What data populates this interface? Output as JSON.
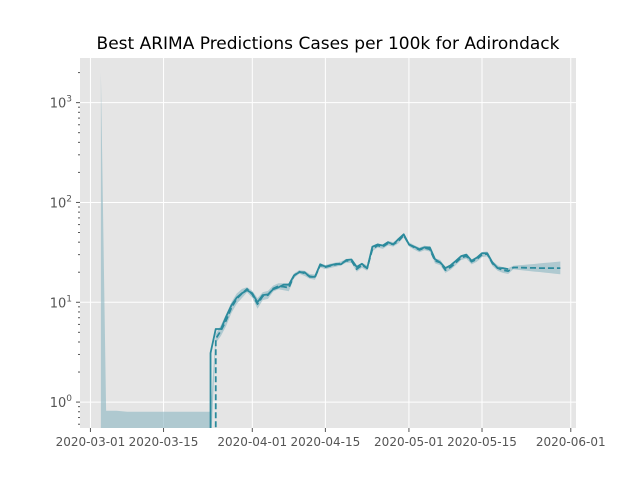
{
  "chart_data": {
    "type": "line",
    "title": "Best ARIMA Predictions Cases per 100k for Adirondack",
    "xlabel": "",
    "ylabel": "",
    "x_range": [
      "2020-02-28",
      "2020-06-02"
    ],
    "ylim": [
      0.55,
      2800
    ],
    "y_scale": "log",
    "grid": true,
    "legend": "none",
    "x_ticks": [
      {
        "date": "2020-03-01",
        "label": "2020-03-01"
      },
      {
        "date": "2020-03-15",
        "label": "2020-03-15"
      },
      {
        "date": "2020-04-01",
        "label": "2020-04-01"
      },
      {
        "date": "2020-04-15",
        "label": "2020-04-15"
      },
      {
        "date": "2020-05-01",
        "label": "2020-05-01"
      },
      {
        "date": "2020-05-15",
        "label": "2020-05-15"
      },
      {
        "date": "2020-06-01",
        "label": "2020-06-01"
      }
    ],
    "y_ticks": [
      {
        "value": 1,
        "base": "10",
        "exp": "0"
      },
      {
        "value": 10,
        "base": "10",
        "exp": "1"
      },
      {
        "value": 100,
        "base": "10",
        "exp": "2"
      },
      {
        "value": 1000,
        "base": "10",
        "exp": "3"
      }
    ],
    "actual": {
      "style": "solid",
      "color": "#2b8a9c",
      "points": [
        [
          "2020-03-24",
          0.3
        ],
        [
          "2020-03-24",
          3.1
        ],
        [
          "2020-03-25",
          5.4
        ],
        [
          "2020-03-26",
          5.4
        ],
        [
          "2020-03-27",
          7.2
        ],
        [
          "2020-03-28",
          9.3
        ],
        [
          "2020-03-29",
          11.1
        ],
        [
          "2020-03-30",
          12.3
        ],
        [
          "2020-03-31",
          13.2
        ],
        [
          "2020-04-01",
          12.3
        ],
        [
          "2020-04-02",
          10.0
        ],
        [
          "2020-04-03",
          11.8
        ],
        [
          "2020-04-04",
          12.0
        ],
        [
          "2020-04-05",
          13.5
        ],
        [
          "2020-04-06",
          14.1
        ],
        [
          "2020-04-07",
          15.0
        ],
        [
          "2020-04-08",
          15.0
        ],
        [
          "2020-04-09",
          18.6
        ],
        [
          "2020-04-10",
          20.0
        ],
        [
          "2020-04-11",
          20.0
        ],
        [
          "2020-04-12",
          18.0
        ],
        [
          "2020-04-13",
          18.0
        ],
        [
          "2020-04-14",
          24.0
        ],
        [
          "2020-04-15",
          22.7
        ],
        [
          "2020-04-16",
          23.5
        ],
        [
          "2020-04-17",
          24.2
        ],
        [
          "2020-04-18",
          24.0
        ],
        [
          "2020-04-19",
          26.5
        ],
        [
          "2020-04-20",
          26.8
        ],
        [
          "2020-04-21",
          22.6
        ],
        [
          "2020-04-22",
          24.3
        ],
        [
          "2020-04-23",
          21.8
        ],
        [
          "2020-04-24",
          36.0
        ],
        [
          "2020-04-25",
          38.0
        ],
        [
          "2020-04-26",
          37.0
        ],
        [
          "2020-04-27",
          40.0
        ],
        [
          "2020-04-28",
          38.0
        ],
        [
          "2020-04-29",
          43.0
        ],
        [
          "2020-04-30",
          48.0
        ],
        [
          "2020-05-01",
          38.0
        ],
        [
          "2020-05-02",
          36.0
        ],
        [
          "2020-05-03",
          34.0
        ],
        [
          "2020-05-04",
          35.5
        ],
        [
          "2020-05-05",
          35.5
        ],
        [
          "2020-05-06",
          27.0
        ],
        [
          "2020-05-07",
          25.0
        ],
        [
          "2020-05-08",
          22.0
        ],
        [
          "2020-05-09",
          23.5
        ],
        [
          "2020-05-10",
          26.0
        ],
        [
          "2020-05-11",
          29.0
        ],
        [
          "2020-05-12",
          30.0
        ],
        [
          "2020-05-13",
          26.0
        ],
        [
          "2020-05-14",
          28.0
        ],
        [
          "2020-05-15",
          31.0
        ],
        [
          "2020-05-16",
          31.0
        ],
        [
          "2020-05-17",
          25.0
        ],
        [
          "2020-05-18",
          22.0
        ],
        [
          "2020-05-19",
          22.0
        ],
        [
          "2020-05-20",
          21.5
        ]
      ]
    },
    "predicted": {
      "style": "dashed",
      "color": "#2b8a9c",
      "points": [
        [
          "2020-03-25",
          0.3
        ],
        [
          "2020-03-25",
          4.3
        ],
        [
          "2020-03-26",
          5.2
        ],
        [
          "2020-03-27",
          6.6
        ],
        [
          "2020-03-28",
          8.8
        ],
        [
          "2020-03-29",
          10.8
        ],
        [
          "2020-03-30",
          12.2
        ],
        [
          "2020-03-31",
          13.6
        ],
        [
          "2020-04-01",
          12.0
        ],
        [
          "2020-04-02",
          9.6
        ],
        [
          "2020-04-03",
          11.5
        ],
        [
          "2020-04-04",
          11.8
        ],
        [
          "2020-04-05",
          13.7
        ],
        [
          "2020-04-06",
          14.5
        ],
        [
          "2020-04-07",
          14.3
        ],
        [
          "2020-04-08",
          14.0
        ],
        [
          "2020-04-09",
          18.5
        ],
        [
          "2020-04-10",
          20.2
        ],
        [
          "2020-04-11",
          19.5
        ],
        [
          "2020-04-12",
          18.2
        ],
        [
          "2020-04-13",
          17.8
        ],
        [
          "2020-04-14",
          23.5
        ],
        [
          "2020-04-15",
          22.5
        ],
        [
          "2020-04-16",
          23.2
        ],
        [
          "2020-04-17",
          23.8
        ],
        [
          "2020-04-18",
          24.5
        ],
        [
          "2020-04-19",
          26.0
        ],
        [
          "2020-04-20",
          26.0
        ],
        [
          "2020-04-21",
          21.5
        ],
        [
          "2020-04-22",
          23.5
        ],
        [
          "2020-04-23",
          22.0
        ],
        [
          "2020-04-24",
          34.0
        ],
        [
          "2020-04-25",
          37.0
        ],
        [
          "2020-04-26",
          36.0
        ],
        [
          "2020-04-27",
          39.0
        ],
        [
          "2020-04-28",
          38.0
        ],
        [
          "2020-04-29",
          41.0
        ],
        [
          "2020-04-30",
          47.0
        ],
        [
          "2020-05-01",
          38.0
        ],
        [
          "2020-05-02",
          35.5
        ],
        [
          "2020-05-03",
          33.5
        ],
        [
          "2020-05-04",
          35.0
        ],
        [
          "2020-05-05",
          34.0
        ],
        [
          "2020-05-06",
          26.0
        ],
        [
          "2020-05-07",
          25.0
        ],
        [
          "2020-05-08",
          21.0
        ],
        [
          "2020-05-09",
          22.5
        ],
        [
          "2020-05-10",
          25.0
        ],
        [
          "2020-05-11",
          28.0
        ],
        [
          "2020-05-12",
          29.0
        ],
        [
          "2020-05-13",
          25.5
        ],
        [
          "2020-05-14",
          27.0
        ],
        [
          "2020-05-15",
          30.0
        ],
        [
          "2020-05-16",
          30.5
        ],
        [
          "2020-05-17",
          24.5
        ],
        [
          "2020-05-18",
          22.0
        ],
        [
          "2020-05-19",
          21.0
        ],
        [
          "2020-05-20",
          20.5
        ],
        [
          "2020-05-21",
          22.3
        ],
        [
          "2020-05-22",
          22.3
        ],
        [
          "2020-05-23",
          22.2
        ],
        [
          "2020-05-24",
          22.1
        ],
        [
          "2020-05-25",
          22.1
        ],
        [
          "2020-05-26",
          22.0
        ],
        [
          "2020-05-27",
          22.0
        ],
        [
          "2020-05-28",
          22.0
        ],
        [
          "2020-05-29",
          22.0
        ],
        [
          "2020-05-30",
          22.0
        ]
      ]
    },
    "confidence_band": {
      "color": "#8ab6c2",
      "opacity": 0.6,
      "upper": [
        [
          "2020-03-03",
          2000
        ],
        [
          "2020-03-04",
          0.82
        ],
        [
          "2020-03-06",
          0.82
        ],
        [
          "2020-03-08",
          0.8
        ],
        [
          "2020-03-24",
          0.8
        ],
        [
          "2020-03-25",
          4.8
        ],
        [
          "2020-03-26",
          5.9
        ],
        [
          "2020-03-27",
          7.6
        ],
        [
          "2020-03-28",
          10.0
        ],
        [
          "2020-03-29",
          12.2
        ],
        [
          "2020-03-30",
          13.6
        ],
        [
          "2020-03-31",
          14.2
        ],
        [
          "2020-04-01",
          13.0
        ],
        [
          "2020-04-02",
          11.0
        ],
        [
          "2020-04-03",
          12.6
        ],
        [
          "2020-04-04",
          13.0
        ],
        [
          "2020-04-05",
          14.7
        ],
        [
          "2020-04-06",
          15.5
        ],
        [
          "2020-04-07",
          15.5
        ],
        [
          "2020-04-08",
          15.5
        ],
        [
          "2020-04-09",
          19.5
        ],
        [
          "2020-04-10",
          21.0
        ],
        [
          "2020-04-11",
          20.7
        ],
        [
          "2020-04-12",
          19.2
        ],
        [
          "2020-04-13",
          19.0
        ],
        [
          "2020-04-14",
          24.6
        ],
        [
          "2020-04-15",
          23.6
        ],
        [
          "2020-04-16",
          24.4
        ],
        [
          "2020-04-17",
          25.0
        ],
        [
          "2020-04-18",
          25.6
        ],
        [
          "2020-04-19",
          27.2
        ],
        [
          "2020-04-20",
          27.3
        ],
        [
          "2020-04-21",
          23.0
        ],
        [
          "2020-04-22",
          24.9
        ],
        [
          "2020-04-23",
          23.4
        ],
        [
          "2020-04-24",
          35.6
        ],
        [
          "2020-04-25",
          38.8
        ],
        [
          "2020-04-26",
          37.8
        ],
        [
          "2020-04-27",
          41.0
        ],
        [
          "2020-04-28",
          40.0
        ],
        [
          "2020-04-29",
          43.2
        ],
        [
          "2020-04-30",
          49.4
        ],
        [
          "2020-05-01",
          40.0
        ],
        [
          "2020-05-02",
          37.4
        ],
        [
          "2020-05-03",
          35.4
        ],
        [
          "2020-05-04",
          36.9
        ],
        [
          "2020-05-05",
          35.9
        ],
        [
          "2020-05-06",
          27.6
        ],
        [
          "2020-05-07",
          26.6
        ],
        [
          "2020-05-08",
          22.4
        ],
        [
          "2020-05-09",
          23.9
        ],
        [
          "2020-05-10",
          26.5
        ],
        [
          "2020-05-11",
          29.6
        ],
        [
          "2020-05-12",
          30.7
        ],
        [
          "2020-05-13",
          27.0
        ],
        [
          "2020-05-14",
          28.6
        ],
        [
          "2020-05-15",
          31.8
        ],
        [
          "2020-05-16",
          32.3
        ],
        [
          "2020-05-17",
          26.0
        ],
        [
          "2020-05-18",
          23.4
        ],
        [
          "2020-05-19",
          22.4
        ],
        [
          "2020-05-20",
          21.9
        ],
        [
          "2020-05-21",
          23.2
        ],
        [
          "2020-05-22",
          23.5
        ],
        [
          "2020-05-23",
          23.7
        ],
        [
          "2020-05-24",
          24.0
        ],
        [
          "2020-05-25",
          24.2
        ],
        [
          "2020-05-26",
          24.5
        ],
        [
          "2020-05-27",
          24.8
        ],
        [
          "2020-05-28",
          25.0
        ],
        [
          "2020-05-29",
          25.3
        ],
        [
          "2020-05-30",
          25.6
        ]
      ],
      "lower": [
        [
          "2020-03-03",
          0.3
        ],
        [
          "2020-03-24",
          0.3
        ],
        [
          "2020-03-25",
          3.9
        ],
        [
          "2020-03-26",
          4.6
        ],
        [
          "2020-03-27",
          5.8
        ],
        [
          "2020-03-28",
          7.8
        ],
        [
          "2020-03-29",
          9.6
        ],
        [
          "2020-03-30",
          11.0
        ],
        [
          "2020-03-31",
          12.6
        ],
        [
          "2020-04-01",
          11.1
        ],
        [
          "2020-04-02",
          8.6
        ],
        [
          "2020-04-03",
          10.5
        ],
        [
          "2020-04-04",
          10.8
        ],
        [
          "2020-04-05",
          12.8
        ],
        [
          "2020-04-06",
          13.5
        ],
        [
          "2020-04-07",
          13.2
        ],
        [
          "2020-04-08",
          12.9
        ],
        [
          "2020-04-09",
          17.5
        ],
        [
          "2020-04-10",
          19.3
        ],
        [
          "2020-04-11",
          18.4
        ],
        [
          "2020-04-12",
          17.2
        ],
        [
          "2020-04-13",
          16.8
        ],
        [
          "2020-04-14",
          22.4
        ],
        [
          "2020-04-15",
          21.4
        ],
        [
          "2020-04-16",
          22.1
        ],
        [
          "2020-04-17",
          22.7
        ],
        [
          "2020-04-18",
          23.4
        ],
        [
          "2020-04-19",
          24.9
        ],
        [
          "2020-04-20",
          24.8
        ],
        [
          "2020-04-21",
          20.2
        ],
        [
          "2020-04-22",
          22.2
        ],
        [
          "2020-04-23",
          20.7
        ],
        [
          "2020-04-24",
          32.5
        ],
        [
          "2020-04-25",
          35.3
        ],
        [
          "2020-04-26",
          34.3
        ],
        [
          "2020-04-27",
          37.1
        ],
        [
          "2020-04-28",
          36.1
        ],
        [
          "2020-04-29",
          39.0
        ],
        [
          "2020-04-30",
          44.7
        ],
        [
          "2020-05-01",
          36.2
        ],
        [
          "2020-05-02",
          33.7
        ],
        [
          "2020-05-03",
          31.7
        ],
        [
          "2020-05-04",
          33.2
        ],
        [
          "2020-05-05",
          32.2
        ],
        [
          "2020-05-06",
          24.5
        ],
        [
          "2020-05-07",
          23.5
        ],
        [
          "2020-05-08",
          19.7
        ],
        [
          "2020-05-09",
          21.2
        ],
        [
          "2020-05-10",
          23.6
        ],
        [
          "2020-05-11",
          26.5
        ],
        [
          "2020-05-12",
          27.4
        ],
        [
          "2020-05-13",
          24.0
        ],
        [
          "2020-05-14",
          25.5
        ],
        [
          "2020-05-15",
          28.3
        ],
        [
          "2020-05-16",
          28.8
        ],
        [
          "2020-05-17",
          23.1
        ],
        [
          "2020-05-18",
          20.7
        ],
        [
          "2020-05-19",
          19.7
        ],
        [
          "2020-05-20",
          19.2
        ],
        [
          "2020-05-21",
          21.4
        ],
        [
          "2020-05-22",
          21.1
        ],
        [
          "2020-05-23",
          20.8
        ],
        [
          "2020-05-24",
          20.6
        ],
        [
          "2020-05-25",
          20.3
        ],
        [
          "2020-05-26",
          20.1
        ],
        [
          "2020-05-27",
          19.8
        ],
        [
          "2020-05-28",
          19.6
        ],
        [
          "2020-05-29",
          19.3
        ],
        [
          "2020-05-30",
          19.1
        ]
      ]
    }
  }
}
